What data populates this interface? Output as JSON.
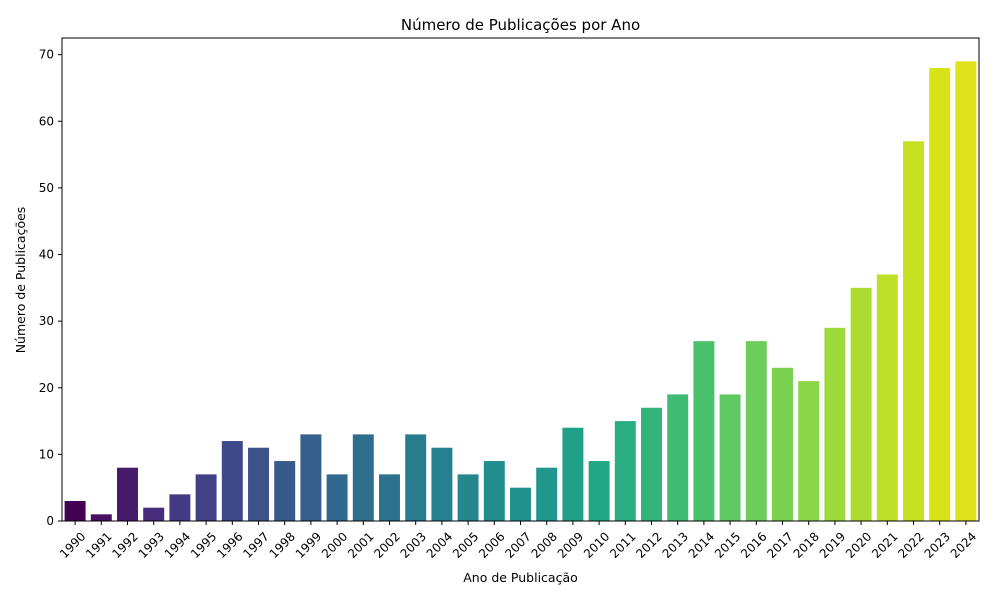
{
  "chart_data": {
    "type": "bar",
    "title": "Número de Publicações por Ano",
    "xlabel": "Ano de Publicação",
    "ylabel": "Número de Publicações",
    "categories": [
      "1990",
      "1991",
      "1992",
      "1993",
      "1994",
      "1995",
      "1996",
      "1997",
      "1998",
      "1999",
      "2000",
      "2001",
      "2002",
      "2003",
      "2004",
      "2005",
      "2006",
      "2007",
      "2008",
      "2009",
      "2010",
      "2011",
      "2012",
      "2013",
      "2014",
      "2015",
      "2016",
      "2017",
      "2018",
      "2019",
      "2020",
      "2021",
      "2022",
      "2023",
      "2024"
    ],
    "values": [
      3,
      1,
      8,
      2,
      4,
      7,
      12,
      11,
      9,
      13,
      7,
      13,
      7,
      13,
      11,
      7,
      9,
      5,
      8,
      14,
      9,
      15,
      17,
      19,
      27,
      19,
      27,
      23,
      21,
      29,
      35,
      37,
      57,
      68,
      69
    ],
    "colors": [
      "#440154",
      "#471063",
      "#48186a",
      "#472d7b",
      "#443a83",
      "#424086",
      "#3e4989",
      "#3b528b",
      "#38598c",
      "#355f8d",
      "#31688e",
      "#2e6f8e",
      "#2c728e",
      "#297b8e",
      "#26828e",
      "#24878e",
      "#228d8d",
      "#21918c",
      "#1f988b",
      "#1fa088",
      "#21a685",
      "#28ae80",
      "#31b57b",
      "#3fbc73",
      "#4ac16d",
      "#5ec962",
      "#6ccd5a",
      "#7ad151",
      "#8bd646",
      "#9dd93b",
      "#addc30",
      "#bddf26",
      "#c5e021",
      "#d8e219",
      "#e0e21a"
    ],
    "yticks": [
      0,
      10,
      20,
      30,
      40,
      50,
      60,
      70
    ],
    "ylim": [
      0,
      72.5
    ],
    "grid": false,
    "legend": "none"
  }
}
